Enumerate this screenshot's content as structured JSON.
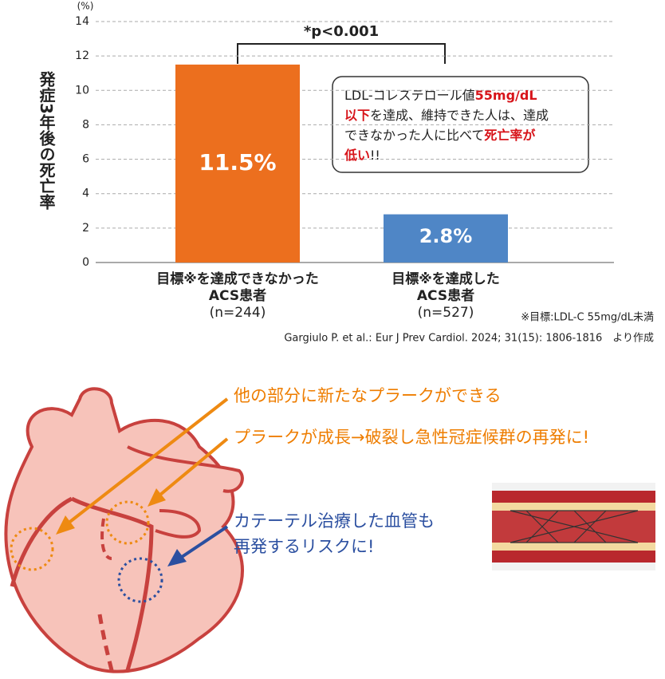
{
  "chart_data": {
    "type": "bar",
    "y_unit": "(%)",
    "ylabel": "発症3年後の死亡率",
    "categories": [
      [
        "目標※を達成できなかった",
        "ACS患者",
        "(n=244)"
      ],
      [
        "目標※を達成した",
        "ACS患者",
        "(n=527)"
      ]
    ],
    "values": [
      11.5,
      2.8
    ],
    "value_labels": [
      "11.5%",
      "2.8%"
    ],
    "colors": [
      "#ec6f1e",
      "#4f86c6"
    ],
    "ylim": [
      0,
      14
    ],
    "yticks": [
      0,
      2,
      4,
      6,
      8,
      10,
      12,
      14
    ],
    "grid": true,
    "significance": "*p<0.001",
    "callout": [
      [
        {
          "text": "LDL-コレステロール値",
          "color": "#222222"
        },
        {
          "text": "55mg/dL",
          "color": "#d7141a"
        }
      ],
      [
        {
          "text": "以下",
          "color": "#d7141a"
        },
        {
          "text": "を達成、維持できた人は、達成",
          "color": "#222222"
        }
      ],
      [
        {
          "text": "できなかった人に比べて",
          "color": "#222222"
        },
        {
          "text": "死亡率が",
          "color": "#d7141a"
        }
      ],
      [
        {
          "text": "低い",
          "color": "#d7141a"
        },
        {
          "text": "!!",
          "color": "#222222"
        }
      ]
    ],
    "note": "※目標:LDL-C 55mg/dL未満",
    "source": "Gargiulo P. et al.:  Eur J Prev Cardiol. 2024; 31(15): 1806-1816　より作成"
  },
  "illustration": {
    "labels": [
      "他の部分に新たなプラークができる",
      "プラークが成長→破裂し急性冠症候群の再発に!",
      "カテーテル治療した血管も",
      "再発するリスクに!"
    ]
  }
}
